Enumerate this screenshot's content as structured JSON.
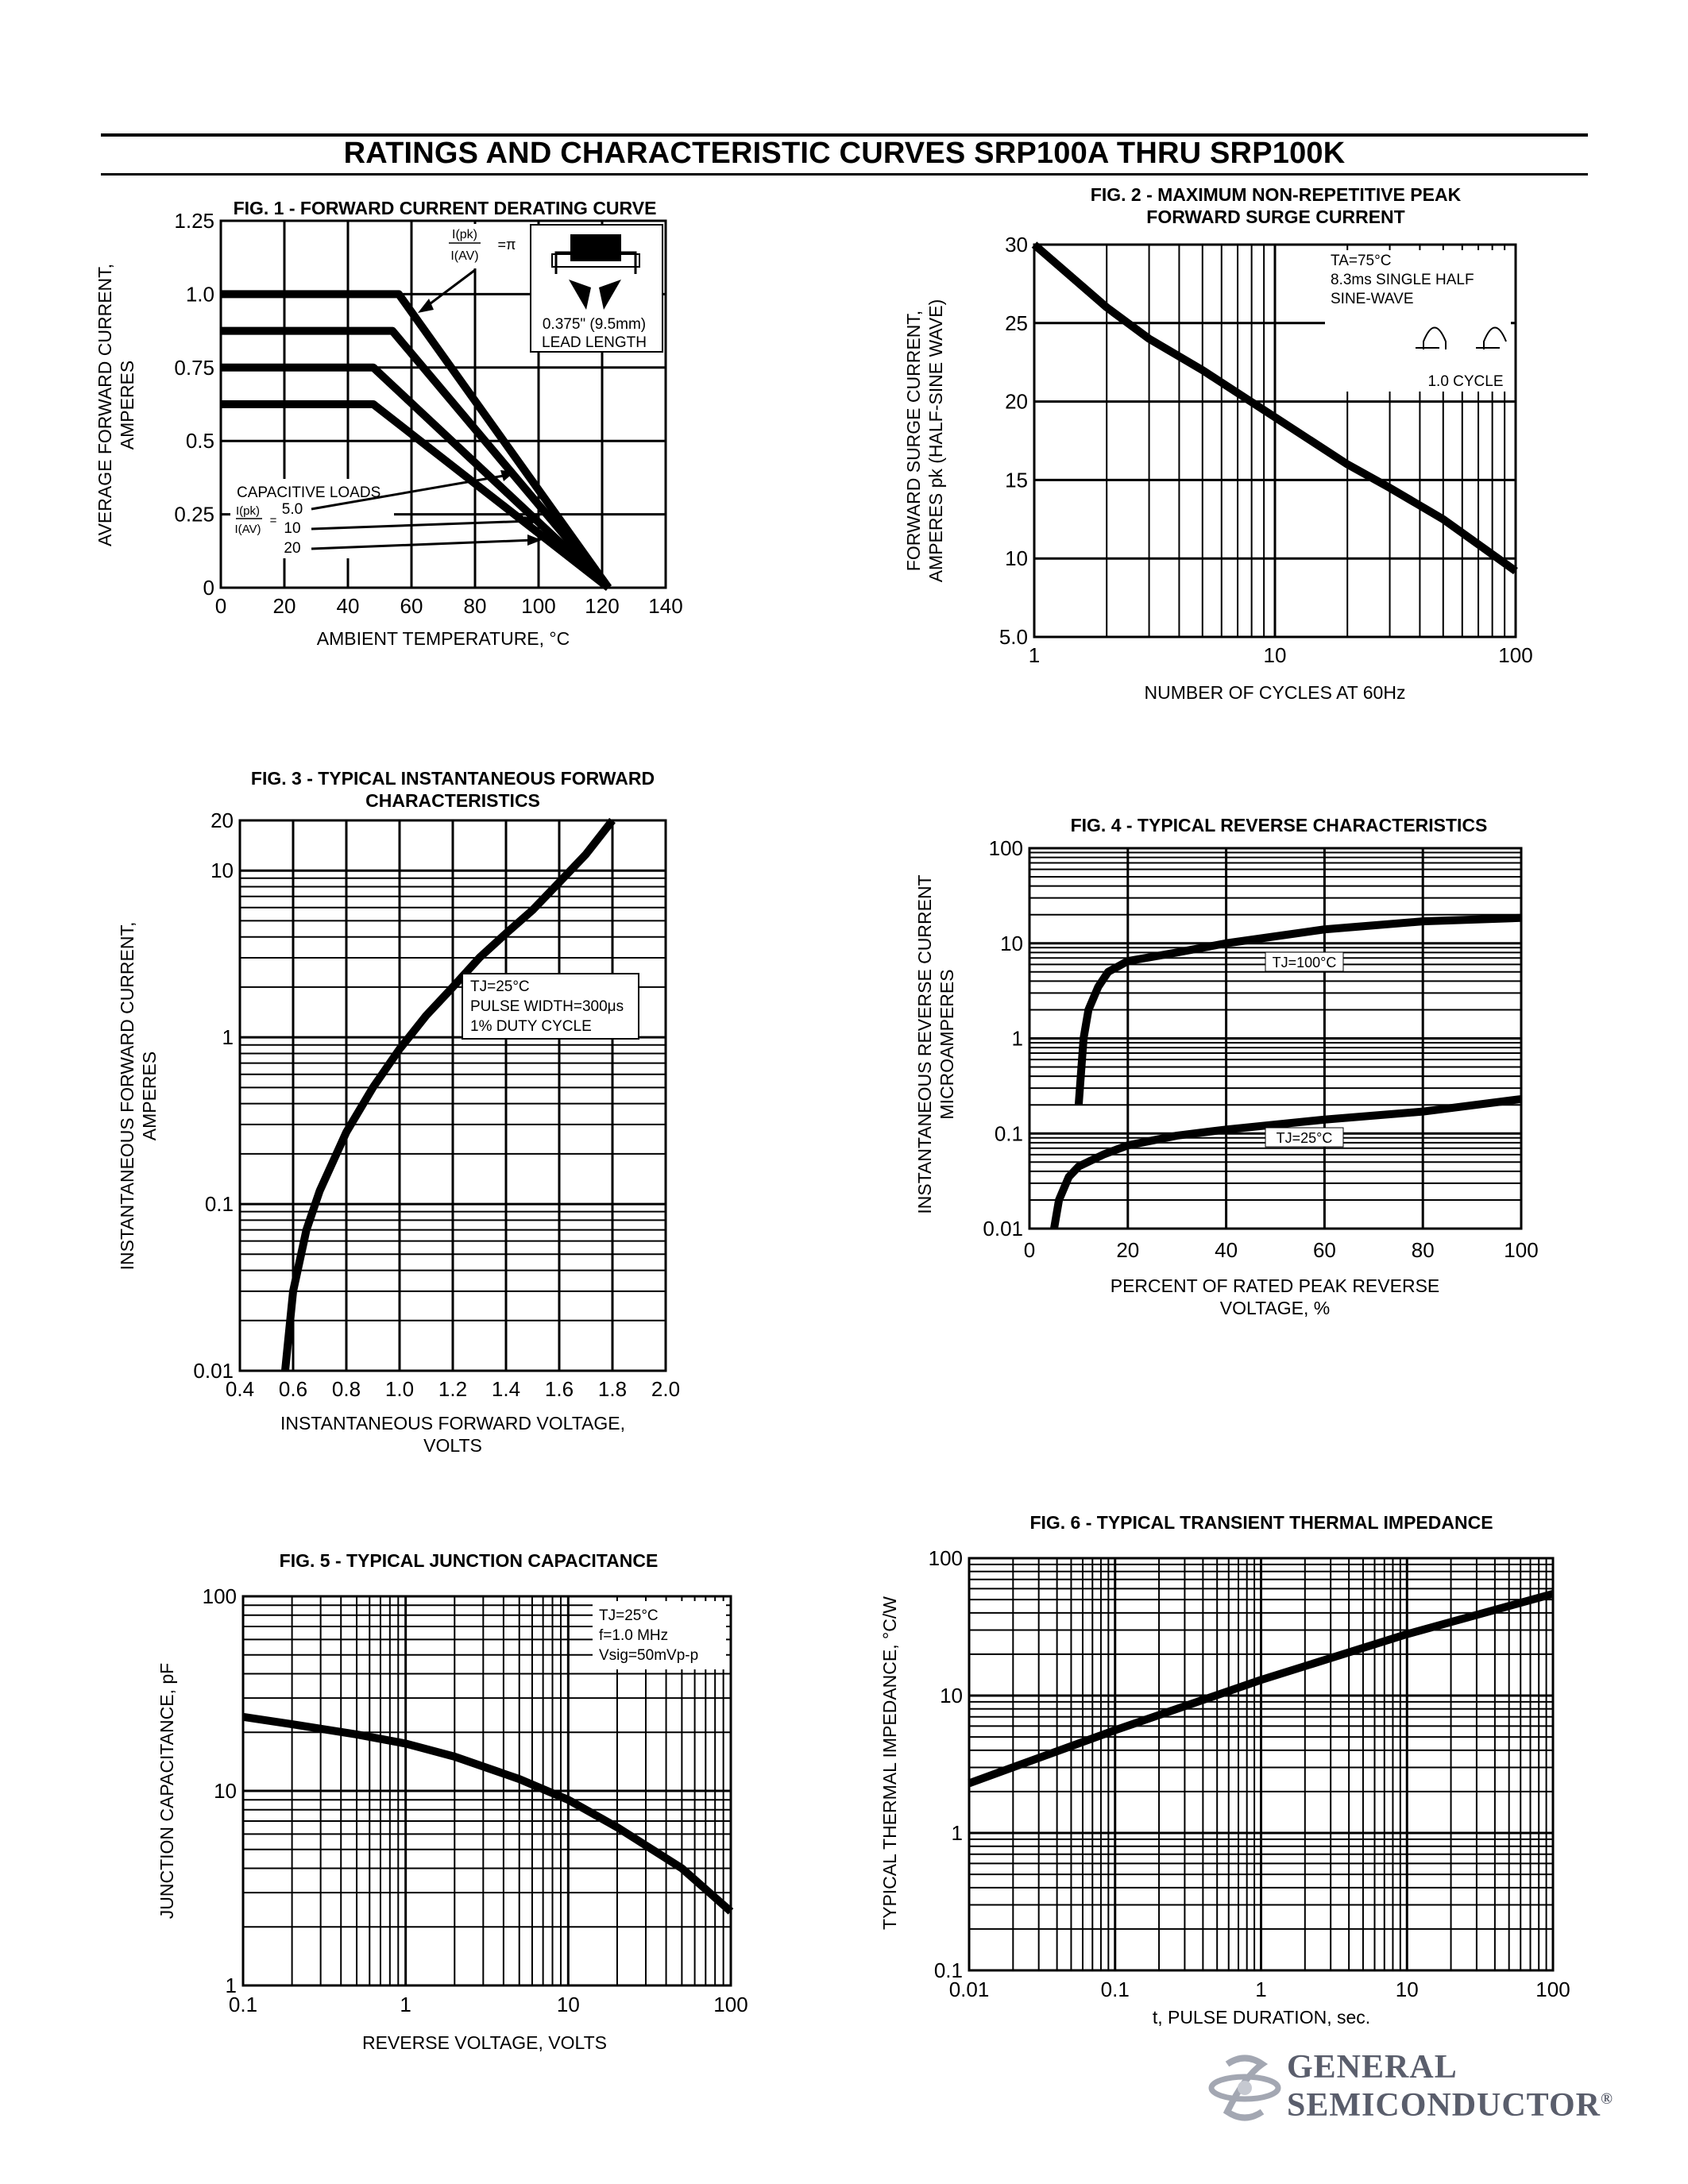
{
  "page_title": "RATINGS AND CHARACTERISTIC CURVES SRP100A THRU SRP100K",
  "logo": {
    "line1": "GENERAL",
    "line2": "SEMICONDUCTOR",
    "mark": "®"
  },
  "chart_data": [
    {
      "id": "fig1",
      "type": "line",
      "title": "FIG. 1 - FORWARD CURRENT DERATING CURVE",
      "xlabel": "AMBIENT TEMPERATURE, °C",
      "ylabel": [
        "AVERAGE FORWARD CURRENT,",
        "AMPERES"
      ],
      "xlim": [
        0,
        140
      ],
      "ylim": [
        0,
        1.25
      ],
      "x_ticks": [
        0,
        20,
        40,
        60,
        80,
        100,
        120,
        140
      ],
      "x_tick_labels": [
        "0",
        "20",
        "40",
        "60",
        "80",
        "100",
        "120",
        "140"
      ],
      "y_ticks": [
        0,
        0.25,
        0.5,
        0.75,
        1.0,
        1.25
      ],
      "y_tick_labels": [
        "0",
        "0.25",
        "0.5",
        "0.75",
        "1.0",
        "1.25"
      ],
      "grid": true,
      "series": [
        {
          "name": "I(pk)/I(AV)=π",
          "x": [
            0,
            56,
            122
          ],
          "y": [
            1.0,
            1.0,
            0
          ]
        },
        {
          "name": "5.0",
          "x": [
            0,
            54,
            122
          ],
          "y": [
            0.875,
            0.875,
            0
          ]
        },
        {
          "name": "10",
          "x": [
            0,
            48,
            122
          ],
          "y": [
            0.75,
            0.75,
            0
          ]
        },
        {
          "name": "20",
          "x": [
            0,
            48,
            122
          ],
          "y": [
            0.625,
            0.625,
            0
          ]
        }
      ],
      "annotations": {
        "ratio_top": "I(pk)",
        "ratio_bottom": "I(AV)",
        "ratio_value": "=π",
        "lead_length_1": "0.375\" (9.5mm)",
        "lead_length_2": "LEAD LENGTH",
        "capacitive_loads": "CAPACITIVE LOADS",
        "cap_ratio_top": "I(pk)",
        "cap_ratio_bottom": "I(AV)",
        "cap_eq": "=",
        "cap_values": [
          "5.0",
          "10",
          "20"
        ]
      }
    },
    {
      "id": "fig2",
      "type": "line",
      "x_scale": "log",
      "title": [
        "FIG. 2 - MAXIMUM NON-REPETITIVE PEAK",
        "FORWARD SURGE CURRENT"
      ],
      "xlabel": "NUMBER OF CYCLES AT 60Hz",
      "ylabel": [
        "FORWARD SURGE CURRENT,",
        "AMPERES pk (HALF-SINE WAVE)"
      ],
      "xlim": [
        1,
        100
      ],
      "ylim": [
        5,
        30
      ],
      "x_ticks": [
        1,
        10,
        100
      ],
      "x_tick_labels": [
        "1",
        "10",
        "100"
      ],
      "y_ticks": [
        5,
        10,
        15,
        20,
        25,
        30
      ],
      "y_tick_labels": [
        "5.0",
        "10",
        "15",
        "20",
        "25",
        "30"
      ],
      "grid": true,
      "series": [
        {
          "x": [
            1,
            2,
            3,
            5,
            10,
            20,
            30,
            50,
            100
          ],
          "y": [
            30,
            26,
            24,
            22,
            19,
            16,
            14.5,
            12.5,
            9.2
          ]
        }
      ],
      "annotations": {
        "conditions": [
          "TA=75°C",
          "8.3ms SINGLE HALF",
          "SINE-WAVE"
        ],
        "cycle": "1.0 CYCLE"
      }
    },
    {
      "id": "fig3",
      "type": "line",
      "y_scale": "log",
      "title": [
        "FIG. 3 - TYPICAL INSTANTANEOUS FORWARD",
        "CHARACTERISTICS"
      ],
      "xlabel": [
        "INSTANTANEOUS FORWARD VOLTAGE,",
        "VOLTS"
      ],
      "ylabel": [
        "INSTANTANEOUS FORWARD CURRENT,",
        "AMPERES"
      ],
      "xlim": [
        0.4,
        2.0
      ],
      "ylim": [
        0.01,
        20
      ],
      "x_ticks": [
        0.4,
        0.6,
        0.8,
        1.0,
        1.2,
        1.4,
        1.6,
        1.8,
        2.0
      ],
      "x_tick_labels": [
        "0.4",
        "0.6",
        "0.8",
        "1.0",
        "1.2",
        "1.4",
        "1.6",
        "1.8",
        "2.0"
      ],
      "y_ticks": [
        0.01,
        0.1,
        1,
        10,
        20
      ],
      "y_tick_labels": [
        "0.01",
        "0.1",
        "1",
        "10",
        "20"
      ],
      "grid": true,
      "series": [
        {
          "x": [
            0.57,
            0.6,
            0.65,
            0.7,
            0.8,
            0.9,
            1.0,
            1.1,
            1.2,
            1.3,
            1.4,
            1.5,
            1.6,
            1.7,
            1.8
          ],
          "y": [
            0.01,
            0.03,
            0.07,
            0.12,
            0.27,
            0.5,
            0.85,
            1.35,
            2.0,
            3.0,
            4.2,
            5.8,
            8.5,
            12.5,
            20
          ]
        }
      ],
      "annotations": {
        "conditions": [
          "TJ=25°C",
          "PULSE WIDTH=300μs",
          "1% DUTY CYCLE"
        ]
      }
    },
    {
      "id": "fig4",
      "type": "line",
      "y_scale": "log",
      "title": "FIG. 4 - TYPICAL REVERSE CHARACTERISTICS",
      "xlabel": [
        "PERCENT OF RATED PEAK REVERSE",
        "VOLTAGE, %"
      ],
      "ylabel": [
        "INSTANTANEOUS REVERSE CURRENT",
        "MICROAMPERES"
      ],
      "xlim": [
        0,
        100
      ],
      "ylim": [
        0.01,
        100
      ],
      "x_ticks": [
        0,
        20,
        40,
        60,
        80,
        100
      ],
      "x_tick_labels": [
        "0",
        "20",
        "40",
        "60",
        "80",
        "100"
      ],
      "y_ticks": [
        0.01,
        0.1,
        1,
        10,
        100
      ],
      "y_tick_labels": [
        "0.01",
        "0.1",
        "1",
        "10",
        "100"
      ],
      "grid": true,
      "series": [
        {
          "name": "TJ=100°C",
          "x": [
            10,
            11,
            12,
            14,
            16,
            20,
            30,
            40,
            60,
            80,
            100
          ],
          "y": [
            0.2,
            1,
            2,
            3.5,
            5,
            6.5,
            8,
            10,
            14,
            17,
            18.5
          ]
        },
        {
          "name": "TJ=25°C",
          "x": [
            5,
            6,
            8,
            10,
            15,
            20,
            30,
            40,
            60,
            80,
            100
          ],
          "y": [
            0.01,
            0.02,
            0.035,
            0.045,
            0.06,
            0.075,
            0.095,
            0.11,
            0.14,
            0.17,
            0.23
          ]
        }
      ]
    },
    {
      "id": "fig5",
      "type": "line",
      "x_scale": "log",
      "y_scale": "log",
      "title": "FIG. 5 - TYPICAL JUNCTION CAPACITANCE",
      "xlabel": "REVERSE VOLTAGE, VOLTS",
      "ylabel": "JUNCTION CAPACITANCE, pF",
      "xlim": [
        0.1,
        100
      ],
      "ylim": [
        1,
        100
      ],
      "x_ticks": [
        0.1,
        1,
        10,
        100
      ],
      "x_tick_labels": [
        "0.1",
        "1",
        "10",
        "100"
      ],
      "y_ticks": [
        1,
        10,
        100
      ],
      "y_tick_labels": [
        "1",
        "10",
        "100"
      ],
      "grid": true,
      "series": [
        {
          "x": [
            0.1,
            0.2,
            0.5,
            1,
            2,
            5,
            10,
            20,
            50,
            100
          ],
          "y": [
            24,
            22,
            19.5,
            17.5,
            15,
            11.5,
            9,
            6.5,
            4,
            2.4
          ]
        }
      ],
      "annotations": {
        "conditions": [
          "TJ=25°C",
          "f=1.0 MHz",
          "Vsig=50mVp-p"
        ]
      }
    },
    {
      "id": "fig6",
      "type": "line",
      "x_scale": "log",
      "y_scale": "log",
      "title": "FIG. 6 - TYPICAL TRANSIENT THERMAL IMPEDANCE",
      "xlabel": "t, PULSE DURATION, sec.",
      "ylabel": "TYPICAL THERMAL IMPEDANCE, °C/W",
      "xlim": [
        0.01,
        100
      ],
      "ylim": [
        0.1,
        100
      ],
      "x_ticks": [
        0.01,
        0.1,
        1,
        10,
        100
      ],
      "x_tick_labels": [
        "0.01",
        "0.1",
        "1",
        "10",
        "100"
      ],
      "y_ticks": [
        0.1,
        1,
        10,
        100
      ],
      "y_tick_labels": [
        "0.1",
        "1",
        "10",
        "100"
      ],
      "grid": true,
      "series": [
        {
          "x": [
            0.01,
            0.1,
            1,
            10,
            100
          ],
          "y": [
            2.3,
            5.6,
            13,
            28,
            55
          ]
        }
      ]
    }
  ]
}
